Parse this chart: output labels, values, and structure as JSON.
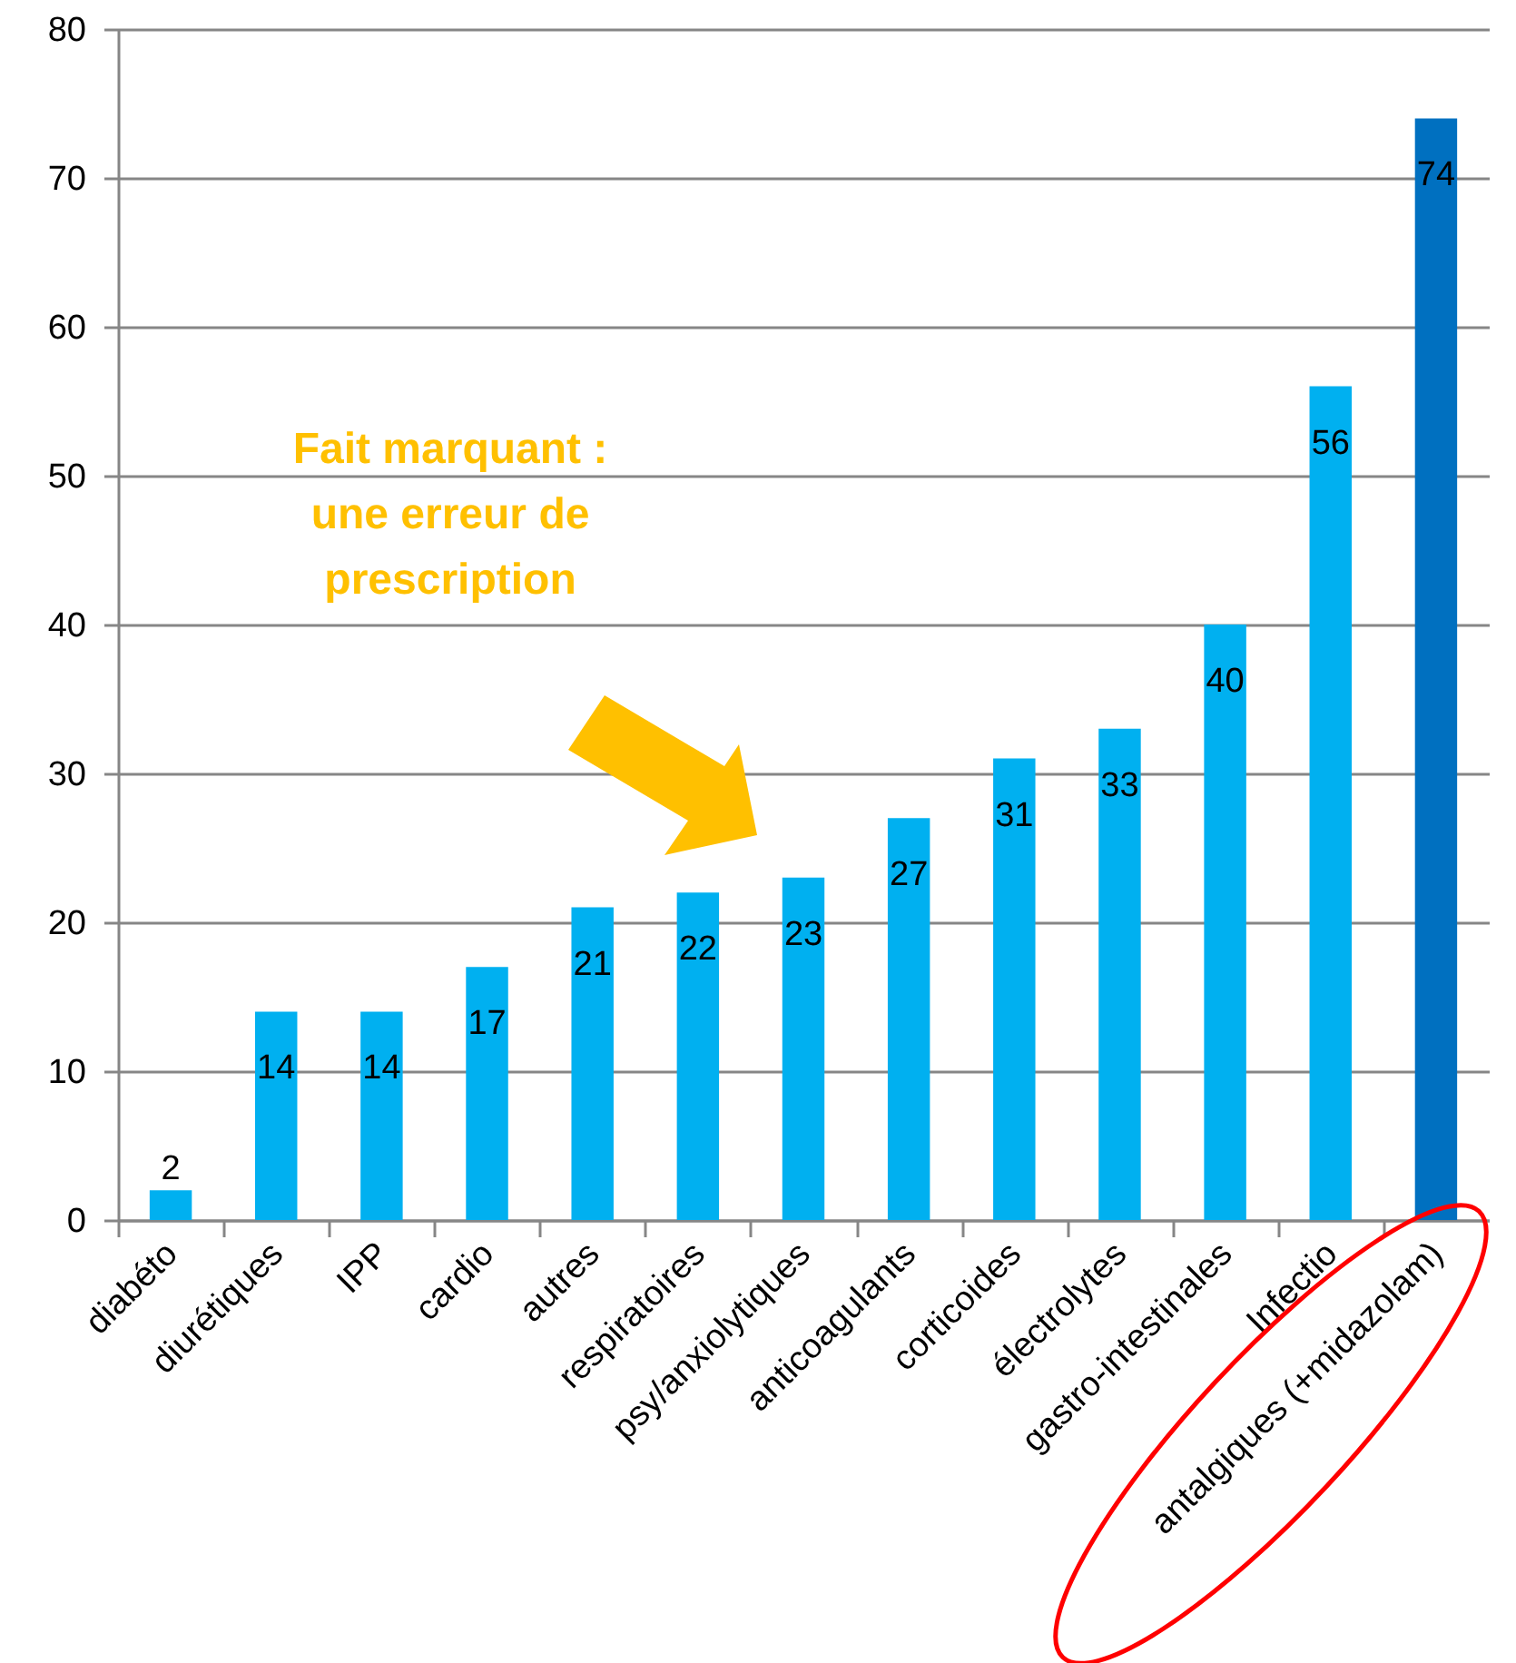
{
  "chart_data": {
    "type": "bar",
    "categories": [
      "diabéto",
      "diurétiques",
      "IPP",
      "cardio",
      "autres",
      "respiratoires",
      "psy/anxiolytiques",
      "anticoagulants",
      "corticoides",
      "électrolytes",
      "gastro-intestinales",
      "Infectio",
      "antalgiques (+midazolam)"
    ],
    "values": [
      2,
      14,
      14,
      17,
      21,
      22,
      23,
      27,
      31,
      33,
      40,
      56,
      74
    ],
    "colors": [
      "#00b0f0",
      "#00b0f0",
      "#00b0f0",
      "#00b0f0",
      "#00b0f0",
      "#00b0f0",
      "#00b0f0",
      "#00b0f0",
      "#00b0f0",
      "#00b0f0",
      "#00b0f0",
      "#00b0f0",
      "#0070c0"
    ],
    "ylim": [
      0,
      80
    ],
    "yticks": [
      0,
      10,
      20,
      30,
      40,
      50,
      60,
      70,
      80
    ],
    "grid": "y",
    "data_labels": true,
    "annotations": [
      "Fait marquant : une erreur de prescription"
    ]
  }
}
